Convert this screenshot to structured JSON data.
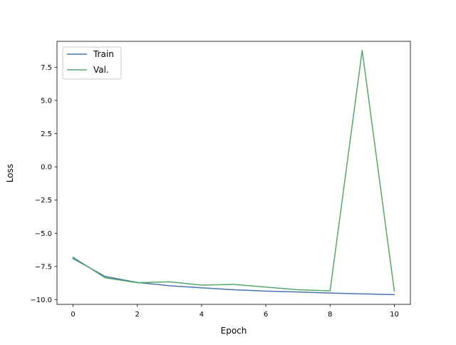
{
  "chart_data": {
    "type": "line",
    "xlabel": "Epoch",
    "ylabel": "Loss",
    "xlim": [
      -0.5,
      10.5
    ],
    "ylim": [
      -10.35,
      9.45
    ],
    "xticks": [
      0,
      2,
      4,
      6,
      8,
      10
    ],
    "yticks": [
      -10.0,
      -7.5,
      -5.0,
      -2.5,
      0.0,
      2.5,
      5.0,
      7.5
    ],
    "xtick_labels": [
      "0",
      "2",
      "4",
      "6",
      "8",
      "10"
    ],
    "ytick_labels": [
      "−10.0",
      "−7.5",
      "−5.0",
      "−2.5",
      "0.0",
      "2.5",
      "5.0",
      "7.5"
    ],
    "grid": false,
    "legend_position": "top-left",
    "x": [
      0,
      1,
      2,
      3,
      4,
      5,
      6,
      7,
      8,
      9,
      10
    ],
    "series": [
      {
        "name": "Train",
        "color": "#4c72b0",
        "values": [
          -6.9,
          -8.25,
          -8.7,
          -8.95,
          -9.1,
          -9.25,
          -9.35,
          -9.42,
          -9.5,
          -9.56,
          -9.62
        ]
      },
      {
        "name": "Val.",
        "color": "#55a868",
        "values": [
          -6.8,
          -8.35,
          -8.72,
          -8.65,
          -8.9,
          -8.85,
          -9.05,
          -9.25,
          -9.33,
          8.77,
          -9.35
        ]
      }
    ]
  }
}
